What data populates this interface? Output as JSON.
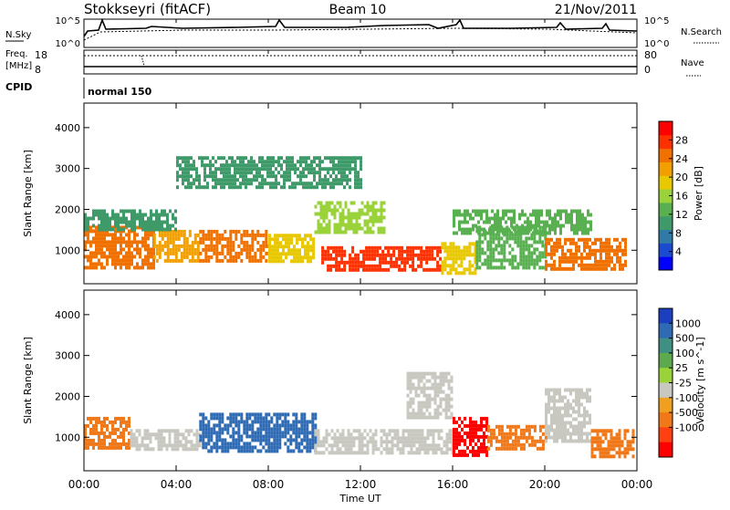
{
  "header": {
    "station": "Stokkseyri (fitACF)",
    "beam": "Beam 10",
    "date": "21/Nov/2011"
  },
  "noise_panel": {
    "left_label": "N.Sky",
    "right_label": "N.Search",
    "left_ticks": [
      "10^5",
      "10^0"
    ],
    "right_ticks": [
      "10^5",
      "10^0"
    ]
  },
  "freq_panel": {
    "left_label_1": "Freq.",
    "left_label_2": "[MHz]",
    "left_ticks": [
      "18",
      "8"
    ],
    "right_label": "Nave",
    "right_ticks": [
      "80",
      "0"
    ]
  },
  "cpid_panel": {
    "label": "CPID",
    "value": "normal 150"
  },
  "time_axis": {
    "label": "Time UT",
    "ticks": [
      "00:00",
      "04:00",
      "08:00",
      "12:00",
      "16:00",
      "20:00",
      "00:00"
    ]
  },
  "colors": {
    "power": [
      "#0000ff",
      "#1a4bd0",
      "#2f7aa6",
      "#3f9a6a",
      "#58b050",
      "#9ad23a",
      "#e8c800",
      "#f2a000",
      "#f07000",
      "#ff3000",
      "#ff0000"
    ],
    "velocity": [
      "#1b3fbf",
      "#2f6ab4",
      "#3f8f82",
      "#5daa4e",
      "#9ad23a",
      "#c8c8c0",
      "#f0a020",
      "#f07818",
      "#ff4010",
      "#ff0000"
    ]
  },
  "chart_data": [
    {
      "type": "heatmap",
      "title": "Power",
      "ylabel": "Slant Range [km]",
      "xlabel": "Time UT",
      "xlim": [
        "00:00",
        "24:00"
      ],
      "ylim": [
        180,
        4600
      ],
      "yticks": [
        1000,
        2000,
        3000,
        4000
      ],
      "colorbar": {
        "label": "Power [dB]",
        "ticks": [
          4,
          8,
          12,
          16,
          20,
          24,
          28
        ],
        "range": [
          0,
          32
        ]
      },
      "regions": [
        {
          "x": [
            0,
            3
          ],
          "y": [
            600,
            1600
          ],
          "value": 26
        },
        {
          "x": [
            3,
            5
          ],
          "y": [
            700,
            1500
          ],
          "value": 22
        },
        {
          "x": [
            5,
            8
          ],
          "y": [
            700,
            1500
          ],
          "value": 25
        },
        {
          "x": [
            8,
            10
          ],
          "y": [
            700,
            1400
          ],
          "value": 20
        },
        {
          "x": [
            10.3,
            15.5
          ],
          "y": [
            500,
            1100
          ],
          "value": 29
        },
        {
          "x": [
            15.5,
            17
          ],
          "y": [
            400,
            1200
          ],
          "value": 18
        },
        {
          "x": [
            17,
            20
          ],
          "y": [
            600,
            1600
          ],
          "value": 14
        },
        {
          "x": [
            20,
            23.5
          ],
          "y": [
            500,
            1300
          ],
          "value": 24
        },
        {
          "x": [
            0,
            4
          ],
          "y": [
            1500,
            2000
          ],
          "value": 11
        },
        {
          "x": [
            10,
            13
          ],
          "y": [
            1400,
            2200
          ],
          "value": 15
        },
        {
          "x": [
            16,
            22
          ],
          "y": [
            1400,
            2000
          ],
          "value": 12
        },
        {
          "x": [
            4,
            12
          ],
          "y": [
            2500,
            3300
          ],
          "value": 9
        }
      ]
    },
    {
      "type": "heatmap",
      "title": "Velocity",
      "ylabel": "Slant Range [km]",
      "xlabel": "Time UT",
      "xlim": [
        "00:00",
        "24:00"
      ],
      "ylim": [
        180,
        4600
      ],
      "yticks": [
        1000,
        2000,
        3000,
        4000
      ],
      "colorbar": {
        "label": "Velocity [m s^-1]",
        "ticks": [
          "1000",
          "500",
          "100",
          "25",
          "-25",
          "-100",
          "-500",
          "-1000"
        ]
      },
      "regions": [
        {
          "x": [
            0,
            2
          ],
          "y": [
            700,
            1500
          ],
          "value": -300
        },
        {
          "x": [
            2,
            5
          ],
          "y": [
            700,
            1200
          ],
          "value": 0
        },
        {
          "x": [
            5,
            10
          ],
          "y": [
            700,
            1600
          ],
          "value": 350
        },
        {
          "x": [
            10,
            16
          ],
          "y": [
            600,
            1200
          ],
          "value": 0
        },
        {
          "x": [
            14,
            16
          ],
          "y": [
            1500,
            2600
          ],
          "value": 0
        },
        {
          "x": [
            16,
            17.5
          ],
          "y": [
            600,
            1500
          ],
          "value": -800
        },
        {
          "x": [
            17.5,
            20
          ],
          "y": [
            700,
            1300
          ],
          "value": -350
        },
        {
          "x": [
            20,
            22
          ],
          "y": [
            900,
            2200
          ],
          "value": 0
        },
        {
          "x": [
            22,
            23.8
          ],
          "y": [
            500,
            1200
          ],
          "value": -300
        }
      ]
    }
  ]
}
